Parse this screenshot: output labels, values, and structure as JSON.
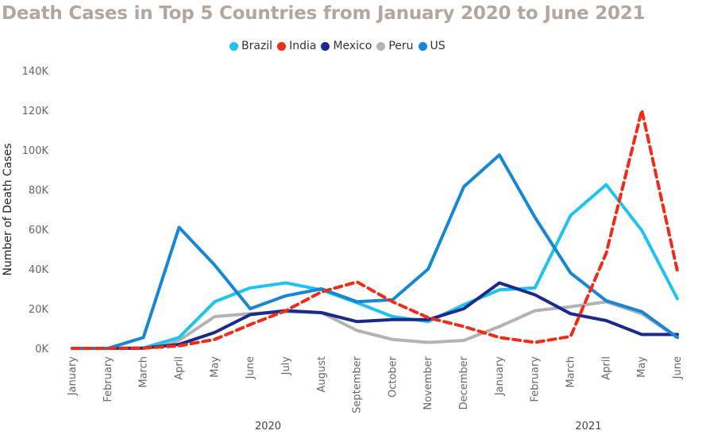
{
  "chart_data": {
    "type": "line",
    "title": "Death Cases in Top 5 Countries from January 2020 to June 2021",
    "ylabel": "Number of Death Cases",
    "xlabel": "",
    "ylim": [
      0,
      140000
    ],
    "y_ticks": [
      0,
      20000,
      40000,
      60000,
      80000,
      100000,
      120000,
      140000
    ],
    "y_tick_labels": [
      "0K",
      "20K",
      "40K",
      "60K",
      "80K",
      "100K",
      "120K",
      "140K"
    ],
    "categories": [
      "January",
      "February",
      "March",
      "April",
      "May",
      "June",
      "July",
      "August",
      "September",
      "October",
      "November",
      "December",
      "January",
      "February",
      "March",
      "April",
      "May",
      "June"
    ],
    "year_groups": [
      {
        "label": "2020",
        "start": 0,
        "end": 11
      },
      {
        "label": "2021",
        "start": 12,
        "end": 17
      }
    ],
    "legend_position": "top-center",
    "grid": false,
    "series": [
      {
        "name": "Brazil",
        "color": "#1ec3f0",
        "dashed": false,
        "values": [
          0,
          0,
          200,
          5500,
          23500,
          30500,
          33000,
          29500,
          23000,
          16000,
          13500,
          22000,
          29500,
          30500,
          67000,
          82500,
          59500,
          25000
        ]
      },
      {
        "name": "India",
        "color": "#f22b17",
        "dashed": true,
        "values": [
          0,
          0,
          100,
          1300,
          4500,
          12000,
          19000,
          28500,
          33500,
          23500,
          15500,
          11000,
          5500,
          3000,
          6000,
          48000,
          120000,
          39000
        ]
      },
      {
        "name": "Mexico",
        "color": "#1a2a8c",
        "dashed": false,
        "values": [
          0,
          0,
          100,
          2000,
          8000,
          17000,
          19000,
          18000,
          13500,
          14500,
          14500,
          20000,
          33000,
          27000,
          17500,
          14000,
          7000,
          7000
        ]
      },
      {
        "name": "Peru",
        "color": "#b3b3b3",
        "dashed": false,
        "values": [
          0,
          0,
          100,
          4000,
          16000,
          17500,
          18500,
          18000,
          9000,
          4500,
          3000,
          4000,
          11000,
          19000,
          21000,
          23500,
          17500,
          5500
        ]
      },
      {
        "name": "US",
        "color": "#1687d4",
        "dashed": false,
        "values": [
          0,
          0,
          5500,
          61000,
          42000,
          20000,
          26500,
          30000,
          23500,
          24500,
          40000,
          81500,
          97500,
          66000,
          38000,
          24000,
          18500,
          5500
        ]
      }
    ]
  }
}
